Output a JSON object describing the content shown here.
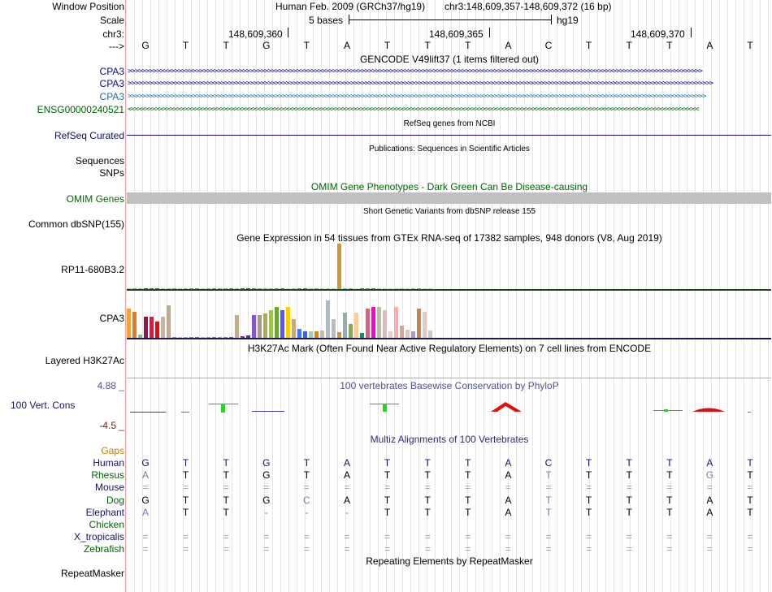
{
  "header": {
    "window_position_label": "Window Position",
    "title": "Human Feb. 2009 (GRCh37/hg19)",
    "position": "chr3:148,609,357-148,609,372 (16 bp)",
    "scale_label": "Scale",
    "scale_text": "5 bases",
    "scale_db": "hg19",
    "chrom_label": "chr3:",
    "coords": [
      "148,609,360",
      "148,609,365",
      "148,609,370"
    ],
    "strand_label": "--->",
    "bases": [
      "G",
      "T",
      "T",
      "G",
      "T",
      "A",
      "T",
      "T",
      "T",
      "A",
      "C",
      "T",
      "T",
      "T",
      "A",
      "T"
    ]
  },
  "tracks": {
    "gencode_title": "GENCODE V49lift37 (1 items filtered out)",
    "gencode_items": [
      "CPA3",
      "CPA3",
      "CPA3",
      "ENSG00000240521"
    ],
    "refseq_label": "RefSeq Curated",
    "refseq_title": "RefSeq genes from NCBI",
    "publications_title": "Publications: Sequences in Scientific Articles",
    "sequences_label": "Sequences",
    "snps_label": "SNPs",
    "omim_title": "OMIM Gene Phenotypes - Dark Green Can Be Disease-causing",
    "omim_label": "OMIM Genes",
    "dbsnp_title": "Short Genetic Variants from dbSNP release 155",
    "dbsnp_label": "Common dbSNP(155)",
    "gtex_title": "Gene Expression in 54 tissues from GTEx RNA-seq of 17382 samples, 948 donors (V8, Aug 2019)",
    "gtex_genes": [
      "RP11-680B3.2",
      "CPA3"
    ],
    "h3k27ac_title": "H3K27Ac Mark (Often Found Near Active Regulatory Elements) on 7 cell lines from ENCODE",
    "h3k27ac_label": "Layered H3K27Ac",
    "phylop_title": "100 vertebrates Basewise Conservation by PhyloP",
    "phylop_max": "4.88 _",
    "phylop_label": "100 Vert. Cons",
    "phylop_min": "-4.5 _",
    "multiz_title": "Multiz Alignments of 100 Vertebrates",
    "gaps_label": "Gaps",
    "repeat_title": "Repeating Elements by RepeatMasker",
    "repeat_label": "RepeatMasker"
  },
  "alignment": [
    {
      "species": "Human",
      "bases": [
        "G",
        "T",
        "T",
        "G",
        "T",
        "A",
        "T",
        "T",
        "T",
        "A",
        "C",
        "T",
        "T",
        "T",
        "A",
        "T"
      ]
    },
    {
      "species": "Rhesus",
      "bases": [
        "A",
        "T",
        "T",
        "G",
        "T",
        "A",
        "T",
        "T",
        "T",
        "A",
        "T",
        "T",
        "T",
        "T",
        "G",
        "T"
      ]
    },
    {
      "species": "Mouse",
      "bases": [
        "=",
        "=",
        "=",
        "=",
        "=",
        "=",
        "=",
        "=",
        "=",
        "=",
        "=",
        "=",
        "=",
        "=",
        "=",
        "="
      ]
    },
    {
      "species": "Dog",
      "bases": [
        "G",
        "T",
        "T",
        "G",
        "C",
        "A",
        "T",
        "T",
        "T",
        "A",
        "T",
        "T",
        "T",
        "T",
        "A",
        "T"
      ]
    },
    {
      "species": "Elephant",
      "bases": [
        "A",
        "T",
        "T",
        "-",
        "-",
        "-",
        "T",
        "T",
        "T",
        "A",
        "T",
        "T",
        "T",
        "T",
        "A",
        "T"
      ]
    },
    {
      "species": "Chicken",
      "bases": [
        "",
        "",
        "",
        "",
        "",
        "",
        "",
        "",
        "",
        "",
        "",
        "",
        "",
        "",
        "",
        ""
      ]
    },
    {
      "species": "X_tropicalis",
      "bases": [
        "=",
        "=",
        "=",
        "=",
        "=",
        "=",
        "=",
        "=",
        "=",
        "=",
        "=",
        "=",
        "=",
        "=",
        "=",
        "="
      ]
    },
    {
      "species": "Zebrafish",
      "bases": [
        "=",
        "=",
        "=",
        "=",
        "=",
        "=",
        "=",
        "=",
        "=",
        "=",
        "=",
        "=",
        "=",
        "=",
        "=",
        "="
      ]
    }
  ],
  "gtex_rp11_levels": [
    0,
    0,
    0,
    0,
    0.02,
    0,
    0,
    0,
    0,
    0,
    0,
    0,
    0,
    0,
    0,
    0,
    0,
    0,
    0,
    0,
    0,
    0,
    0,
    0,
    0,
    0,
    0,
    0,
    0,
    0,
    0,
    0,
    0,
    0,
    0,
    0,
    0,
    1,
    0,
    0,
    0,
    0,
    0.02,
    0,
    0,
    0,
    0,
    0,
    0,
    0,
    0,
    0,
    0,
    0
  ],
  "gtex_cpa3_levels": [
    0.72,
    0.64,
    0.08,
    0.52,
    0.52,
    0.39,
    0.52,
    0.8,
    0.02,
    0.02,
    0.02,
    0.02,
    0.02,
    0.02,
    0.02,
    0.02,
    0.02,
    0.02,
    0.02,
    0.56,
    0.03,
    0.06,
    0.56,
    0.56,
    0.6,
    0.68,
    0.76,
    0.68,
    0.76,
    0.45,
    0.22,
    0.15,
    0.15,
    0.15,
    0.18,
    0.92,
    0.45,
    0.13,
    0.61,
    0.34,
    0.61,
    0.11,
    0.71,
    0.76,
    0.76,
    0.68,
    0.15,
    0.76,
    0.3,
    0.2,
    0.15,
    0.71,
    0.64,
    0.18
  ],
  "colors": {
    "divider": "#e8a7a7",
    "gencode": "#0a0a8e",
    "gencode_teal": "#1c6ea8",
    "ensg": "#006400",
    "refseq": "#0d0d72",
    "omim": "#c0c0c0",
    "phylop_title": "#50509a",
    "phylop_min": "#8b1010",
    "multiz_title": "#2c2c78",
    "gaps": "#cc7c00",
    "species_1": "#12126e",
    "species_2": "#006400"
  }
}
